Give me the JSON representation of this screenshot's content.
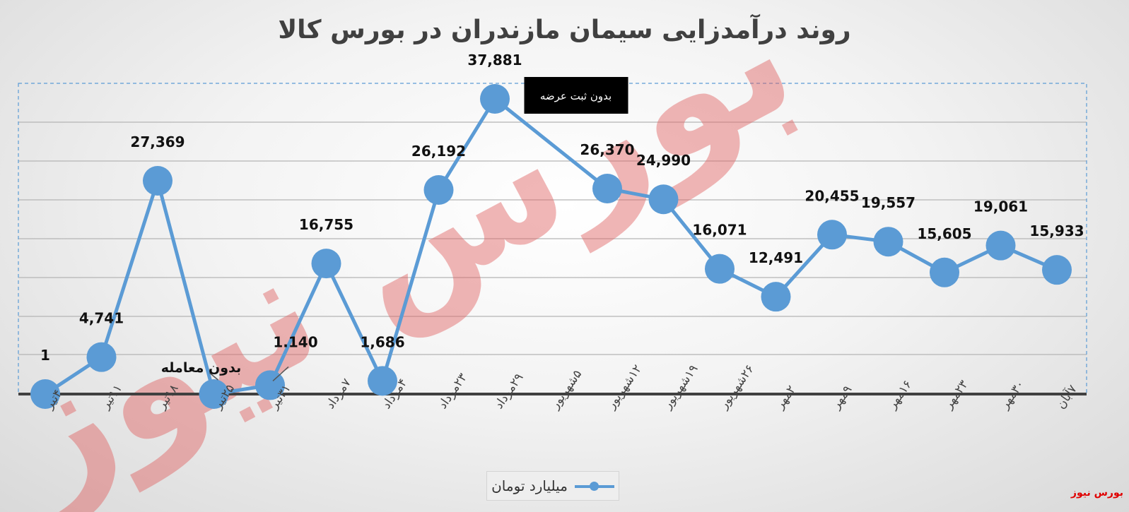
{
  "chart_data": {
    "type": "line",
    "title": "روند درآمدزایی سیمان مازندران در بورس کالا",
    "categories": [
      "۴تیر",
      "۱۱تیر",
      "۱۸تیر",
      "۲۵تیر",
      "۳۱تیر",
      "۷مرداد",
      "۴مرداد",
      "۲۳مرداد",
      "۲۹مرداد",
      "۵شهریور",
      "۱۲شهریور",
      "۱۹شهریور",
      "۲۶شهریور",
      "۲مهر",
      "۹مهر",
      "۱۶مهر",
      "۲۳مهر",
      "۳۰مهر",
      "۷آبان"
    ],
    "series": [
      {
        "name": "میلیارد تومان",
        "color": "#5b9bd5",
        "values": [
          1,
          4741,
          27369,
          null,
          1140,
          16755,
          1686,
          26192,
          37881,
          null,
          26370,
          24990,
          16071,
          12491,
          20455,
          19557,
          15605,
          19061,
          15933
        ],
        "labels": [
          "1",
          "4,741",
          "27,369",
          "",
          "1.140",
          "16,755",
          "1,686",
          "26,192",
          "37,881",
          "",
          "26,370",
          "24,990",
          "16,071",
          "12,491",
          "20,455",
          "19,557",
          "15,605",
          "19,061",
          "15,933"
        ]
      }
    ],
    "annotations": [
      {
        "category_index": 3,
        "text": "بدون معامله"
      },
      {
        "category_index": 9,
        "text": "بدون ثبت عرضه"
      }
    ],
    "legend_position": "bottom",
    "grid": true,
    "colors": {
      "series": "#5b9bd5",
      "axis": "#404040",
      "grid": "#b5b5b5",
      "watermark": "#e06060"
    }
  },
  "legend": {
    "label": "میلیارد تومان"
  },
  "badge": {
    "text": "بورس نیوز"
  },
  "watermark": {
    "text": "بورس نیوز"
  }
}
